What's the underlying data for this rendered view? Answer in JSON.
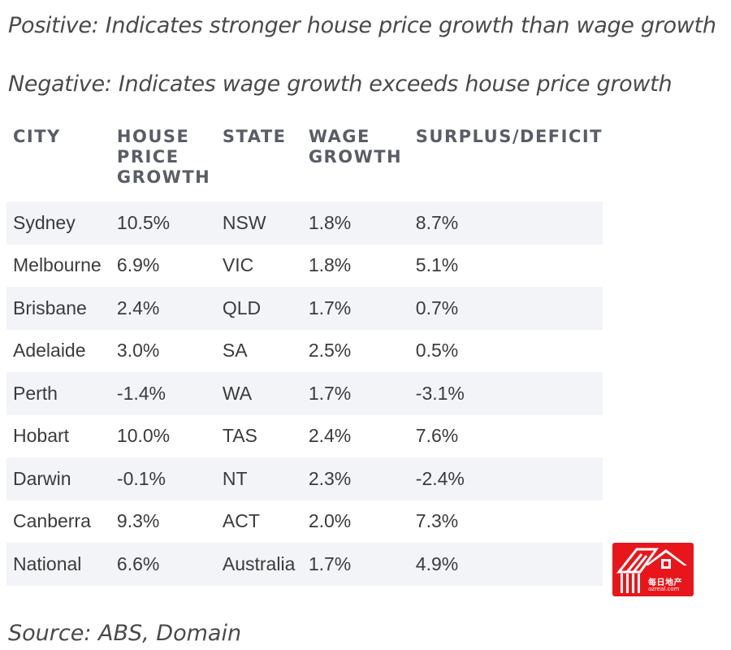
{
  "notes": {
    "positive": "Positive: Indicates stronger house price growth than wage growth",
    "negative": "Negative: Indicates wage growth exceeds house price growth"
  },
  "table": {
    "headers": {
      "city": "CITY",
      "house_price_growth": [
        "HOUSE",
        "PRICE",
        "GROWTH"
      ],
      "state": "STATE",
      "wage_growth": [
        "WAGE",
        "GROWTH"
      ],
      "surplus_deficit": "SURPLUS/DEFICIT"
    },
    "rows": [
      [
        "Sydney",
        "10.5%",
        "NSW",
        "1.8%",
        "8.7%"
      ],
      [
        "Melbourne",
        "6.9%",
        "VIC",
        "1.8%",
        "5.1%"
      ],
      [
        "Brisbane",
        "2.4%",
        "QLD",
        "1.7%",
        "0.7%"
      ],
      [
        "Adelaide",
        "3.0%",
        "SA",
        "2.5%",
        "0.5%"
      ],
      [
        "Perth",
        "-1.4%",
        "WA",
        "1.7%",
        "-3.1%"
      ],
      [
        "Hobart",
        "10.0%",
        "TAS",
        "2.4%",
        "7.6%"
      ],
      [
        "Darwin",
        "-0.1%",
        "NT",
        "2.3%",
        "-2.4%"
      ],
      [
        "Canberra",
        "9.3%",
        "ACT",
        "2.0%",
        "7.3%"
      ],
      [
        "National",
        "6.6%",
        "Australia",
        "1.7%",
        "4.9%"
      ]
    ]
  },
  "source": "Source: ABS, Domain",
  "watermark": {
    "cn_text": "每日地产",
    "en_text": "ozreal.com",
    "color": "#e8161b"
  },
  "colors": {
    "row_stripe": "#f2f4f8",
    "header_text": "#5a5d66"
  }
}
